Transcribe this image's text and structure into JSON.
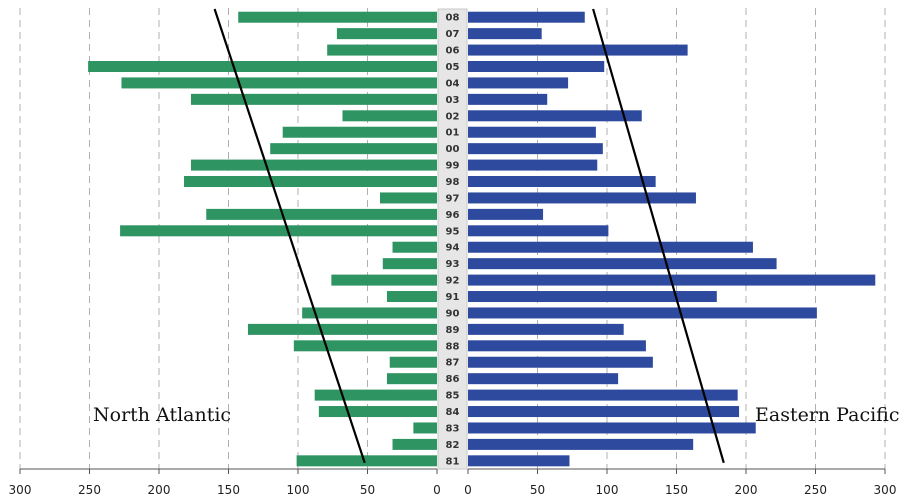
{
  "chart_data": {
    "type": "bar",
    "orientation": "horizontal-back-to-back",
    "years": [
      "08",
      "07",
      "06",
      "05",
      "04",
      "03",
      "02",
      "01",
      "00",
      "99",
      "98",
      "97",
      "96",
      "95",
      "94",
      "93",
      "92",
      "91",
      "90",
      "89",
      "88",
      "87",
      "86",
      "85",
      "84",
      "83",
      "82",
      "81"
    ],
    "series": [
      {
        "name": "North Atlantic",
        "color": "#2e9462",
        "side": "left",
        "values": [
          143,
          72,
          79,
          251,
          227,
          177,
          68,
          111,
          120,
          177,
          182,
          41,
          166,
          228,
          32,
          39,
          76,
          36,
          97,
          136,
          103,
          34,
          36,
          88,
          85,
          17,
          32,
          101
        ],
        "trend": {
          "from": {
            "year": "08",
            "value": 160
          },
          "to": {
            "year": "81",
            "value": 52
          }
        }
      },
      {
        "name": "Eastern Pacific",
        "color": "#2e4a9e",
        "side": "right",
        "values": [
          84,
          53,
          158,
          98,
          72,
          57,
          125,
          92,
          97,
          93,
          135,
          164,
          54,
          101,
          205,
          222,
          293,
          179,
          251,
          112,
          128,
          133,
          108,
          194,
          195,
          207,
          162,
          73
        ],
        "trend": {
          "from": {
            "year": "08",
            "value": 90
          },
          "to": {
            "year": "81",
            "value": 184
          }
        }
      }
    ],
    "xlim": [
      0,
      300
    ],
    "xticks_left": [
      300,
      250,
      200,
      150,
      100,
      50,
      0
    ],
    "xticks_right": [
      0,
      50,
      100,
      150,
      200,
      250,
      300
    ],
    "grid": true,
    "labels": {
      "left": "North Atlantic",
      "right": "Eastern Pacific"
    }
  }
}
